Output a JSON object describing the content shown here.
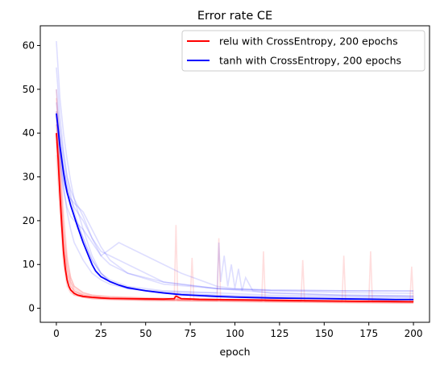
{
  "chart_data": {
    "type": "line",
    "title": "Error rate CE",
    "xlabel": "epoch",
    "ylabel": "",
    "xlim": [
      -9,
      209
    ],
    "ylim": [
      -3.2,
      64.5
    ],
    "xticks": [
      0,
      25,
      50,
      75,
      100,
      125,
      150,
      175,
      200
    ],
    "yticks": [
      0,
      10,
      20,
      30,
      40,
      50,
      60
    ],
    "legend_position": "top-right",
    "series": [
      {
        "name": "relu with CrossEntropy, 200 epochs",
        "color": "#ff0000",
        "x": [
          0,
          1,
          2,
          3,
          4,
          5,
          6,
          7,
          8,
          10,
          12,
          15,
          20,
          25,
          30,
          40,
          50,
          60,
          66,
          67,
          70,
          80,
          90,
          100,
          110,
          120,
          130,
          140,
          150,
          160,
          170,
          180,
          190,
          200
        ],
        "values": [
          40,
          34,
          26,
          19,
          13,
          9,
          6.5,
          5,
          4.2,
          3.4,
          3.0,
          2.7,
          2.5,
          2.35,
          2.25,
          2.2,
          2.15,
          2.1,
          2.2,
          2.8,
          2.2,
          2.05,
          2.0,
          1.95,
          1.9,
          1.85,
          1.8,
          1.75,
          1.7,
          1.65,
          1.6,
          1.6,
          1.55,
          1.5
        ]
      },
      {
        "name": "tanh with CrossEntropy, 200 epochs",
        "color": "#0000ff",
        "x": [
          0,
          1,
          2,
          3,
          4,
          5,
          6,
          7,
          8,
          10,
          12,
          15,
          18,
          20,
          22,
          25,
          30,
          35,
          40,
          50,
          60,
          70,
          80,
          90,
          100,
          110,
          120,
          130,
          140,
          150,
          160,
          170,
          180,
          190,
          200
        ],
        "values": [
          44.5,
          41,
          37,
          34,
          31,
          28.5,
          26.5,
          25,
          23.5,
          21,
          18.5,
          15,
          12,
          10,
          8.5,
          7.2,
          6.1,
          5.3,
          4.7,
          4.0,
          3.5,
          3.1,
          2.9,
          2.7,
          2.55,
          2.45,
          2.35,
          2.3,
          2.25,
          2.2,
          2.15,
          2.1,
          2.05,
          2.0,
          2.0
        ]
      }
    ],
    "background_traces": {
      "relu_color": "#ff0000",
      "tanh_color": "#0000ff",
      "opacity": 0.13,
      "relu_runs": [
        {
          "x": [
            0,
            2,
            4,
            6,
            8,
            10,
            15,
            20,
            30,
            50,
            80,
            120,
            160,
            200
          ],
          "values": [
            45,
            30,
            15,
            8,
            5,
            4,
            3,
            2.6,
            2.3,
            2,
            1.8,
            1.6,
            1.4,
            1.3
          ]
        },
        {
          "x": [
            0,
            2,
            4,
            6,
            8,
            10,
            15,
            20,
            30,
            50,
            80,
            120,
            160,
            200
          ],
          "values": [
            38,
            26,
            12,
            6,
            4,
            3,
            2.5,
            2.2,
            2,
            1.8,
            1.6,
            1.4,
            1.3,
            1.2
          ]
        },
        {
          "x": [
            0,
            2,
            4,
            6,
            8,
            10,
            15,
            20,
            30,
            50,
            80,
            120,
            160,
            200
          ],
          "values": [
            50,
            36,
            22,
            12,
            7,
            5,
            3.5,
            3,
            2.6,
            2.3,
            2,
            1.8,
            1.6,
            1.5
          ]
        },
        {
          "x": [
            0,
            2,
            4,
            6,
            8,
            10,
            15,
            20,
            30,
            50,
            80,
            120,
            160,
            200
          ],
          "values": [
            42,
            28,
            16,
            9,
            6,
            4.5,
            3.2,
            2.8,
            2.4,
            2.1,
            1.9,
            1.7,
            1.5,
            1.4
          ]
        },
        {
          "x": [
            0,
            2,
            4,
            6,
            8,
            10,
            15,
            20,
            30,
            50,
            66,
            67,
            68,
            90,
            91,
            92,
            115,
            116,
            117,
            160,
            161,
            162,
            200
          ],
          "values": [
            35,
            22,
            10,
            5,
            3.5,
            3,
            2.5,
            2.2,
            2,
            1.8,
            1.8,
            19,
            1.8,
            1.7,
            16,
            1.7,
            1.6,
            13,
            1.6,
            1.5,
            12,
            1.5,
            1.4
          ]
        },
        {
          "x": [
            0,
            2,
            4,
            6,
            8,
            10,
            15,
            20,
            30,
            50,
            75,
            76,
            77,
            137,
            138,
            139,
            175,
            176,
            177,
            198,
            199,
            200
          ],
          "values": [
            48,
            33,
            18,
            10,
            6,
            4,
            3,
            2.6,
            2.3,
            2,
            1.9,
            11.5,
            1.9,
            1.6,
            11,
            1.6,
            1.5,
            13,
            1.5,
            1.4,
            9.5,
            1.4
          ]
        },
        {
          "x": [
            0,
            2,
            4,
            6,
            8,
            10,
            15,
            20,
            30,
            50,
            80,
            120,
            160,
            200
          ],
          "values": [
            40,
            27,
            14,
            8,
            5,
            3.8,
            2.8,
            2.4,
            2.1,
            1.9,
            1.7,
            1.5,
            1.3,
            1.2
          ]
        },
        {
          "x": [
            0,
            2,
            4,
            6,
            8,
            10,
            15,
            20,
            30,
            50,
            80,
            120,
            160,
            200
          ],
          "values": [
            44,
            31,
            19,
            11,
            7,
            5,
            3.6,
            3,
            2.7,
            2.4,
            2.1,
            1.9,
            1.7,
            1.6
          ]
        }
      ],
      "tanh_runs": [
        {
          "x": [
            0,
            2,
            4,
            6,
            8,
            10,
            15,
            20,
            25,
            30,
            40,
            60,
            90,
            120,
            160,
            200
          ],
          "values": [
            61,
            48,
            40,
            34,
            29,
            25,
            18,
            12,
            8,
            6,
            4.5,
            3.5,
            3,
            2.7,
            2.5,
            2.4
          ]
        },
        {
          "x": [
            0,
            2,
            4,
            6,
            8,
            10,
            15,
            20,
            25,
            30,
            40,
            60,
            90,
            120,
            160,
            200
          ],
          "values": [
            47,
            40,
            33,
            28,
            24,
            21,
            16,
            11,
            8,
            6.5,
            5,
            4,
            3.5,
            3,
            2.8,
            2.6
          ]
        },
        {
          "x": [
            0,
            2,
            4,
            6,
            8,
            10,
            15,
            20,
            25,
            30,
            40,
            60,
            90,
            120,
            160,
            200
          ],
          "values": [
            42,
            35,
            29,
            26,
            25,
            24,
            22,
            18,
            14,
            11,
            8,
            5.5,
            4.5,
            4,
            3.6,
            3.4
          ]
        },
        {
          "x": [
            0,
            2,
            4,
            6,
            8,
            10,
            15,
            20,
            25,
            30,
            40,
            60,
            90,
            120,
            160,
            200
          ],
          "values": [
            45,
            38,
            32,
            28,
            25,
            23,
            20,
            16,
            13,
            12,
            10,
            6,
            4.5,
            4.1,
            4,
            4
          ]
        },
        {
          "x": [
            0,
            2,
            4,
            6,
            8,
            10,
            15,
            20,
            25,
            30,
            35,
            40,
            50,
            60,
            70,
            80,
            90,
            100,
            120,
            160,
            200
          ],
          "values": [
            50,
            41,
            35,
            30,
            27,
            25,
            21,
            16,
            12,
            13.5,
            15,
            14,
            12,
            10,
            8,
            6.5,
            5,
            4.5,
            4.2,
            4,
            3.9
          ]
        },
        {
          "x": [
            0,
            2,
            4,
            6,
            8,
            10,
            15,
            20,
            25,
            30,
            40,
            60,
            90,
            120,
            160,
            200
          ],
          "values": [
            40,
            33,
            27,
            23,
            21,
            20,
            18,
            15,
            12,
            10,
            8,
            6,
            4.5,
            3.5,
            3,
            2.8
          ]
        },
        {
          "x": [
            0,
            2,
            4,
            6,
            8,
            10,
            15,
            20,
            25,
            30,
            40,
            60,
            90,
            91,
            92,
            94,
            96,
            98,
            100,
            102,
            104,
            106,
            110,
            120,
            160,
            200
          ],
          "values": [
            44,
            36,
            28,
            22,
            18,
            15,
            11,
            8,
            6.5,
            5.5,
            4.5,
            3.8,
            3.5,
            15,
            6,
            12,
            5,
            10,
            4.5,
            9,
            4,
            7,
            4,
            3.5,
            3,
            2.8
          ]
        },
        {
          "x": [
            0,
            2,
            4,
            6,
            8,
            10,
            15,
            20,
            25,
            30,
            40,
            60,
            90,
            120,
            160,
            200
          ],
          "values": [
            55,
            44,
            36,
            30,
            26,
            22,
            16,
            11,
            8,
            6,
            4.5,
            3.5,
            2.9,
            2.5,
            2.2,
            2
          ]
        }
      ]
    }
  }
}
